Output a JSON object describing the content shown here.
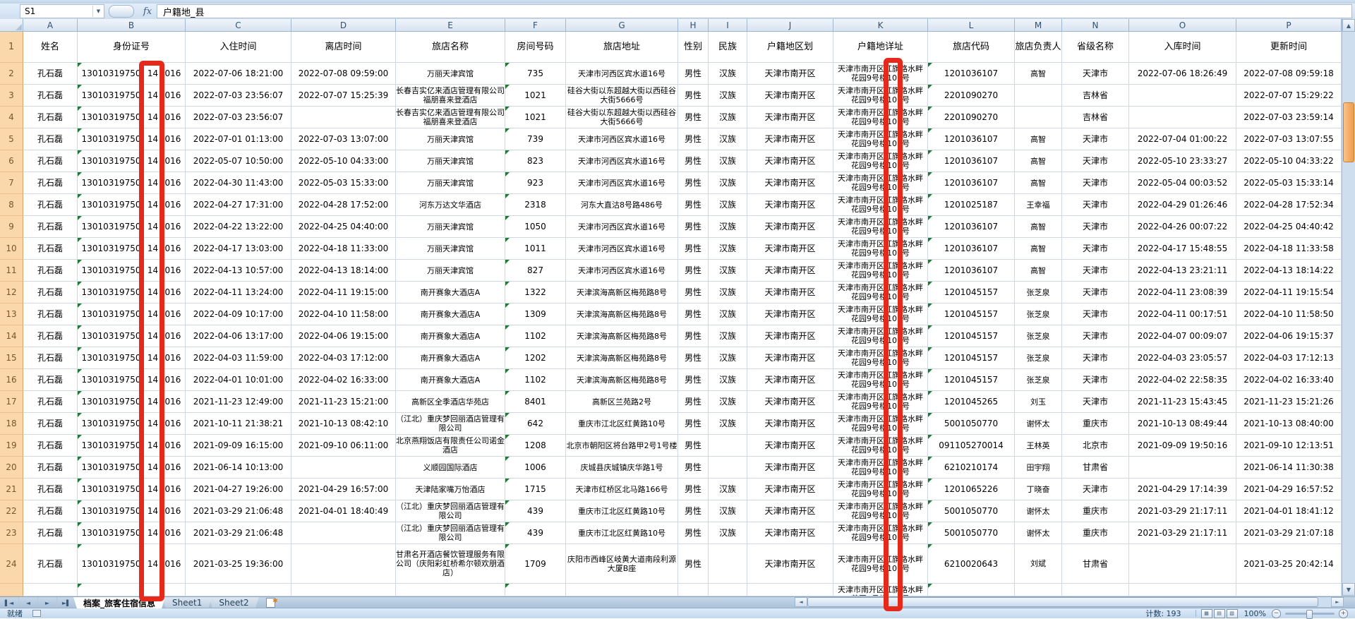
{
  "name_box": {
    "value": "S1"
  },
  "formula_bar": {
    "fx_label": "fx",
    "value": "户籍地_县"
  },
  "column_letters": [
    "A",
    "B",
    "C",
    "D",
    "E",
    "F",
    "G",
    "H",
    "I",
    "J",
    "K",
    "L",
    "M",
    "N",
    "O",
    "P"
  ],
  "table": {
    "headers": [
      "姓名",
      "身份证号",
      "入住时间",
      "离店时间",
      "旅店名称",
      "房间号码",
      "旅店地址",
      "性别",
      "民族",
      "户籍地区划",
      "户籍地详址",
      "旅店代码",
      "旅店负责人",
      "省级名称",
      "入库时间",
      "更新时间"
    ],
    "id_parts": {
      "prefix": "13010319750",
      "highlighted": "14",
      "suffix": "016"
    },
    "common": {
      "name": "孔石磊",
      "gender": "男性",
      "region": "天津市南开区",
      "detail_addr_line1": "天津市南开区红旗路水畔",
      "detail_addr_line2": "花园9号楼101号"
    },
    "rows": [
      {
        "n": 2,
        "in": "2022-07-06 18:21:00",
        "out": "2022-07-08 09:59:00",
        "hotel": "万丽天津宾馆",
        "room": "735",
        "addr": "天津市河西区宾水道16号",
        "eth": "汉族",
        "code": "1201036107",
        "mgr": "高智",
        "prov": "天津市",
        "stored": "2022-07-06 18:26:49",
        "updated": "2022-07-08 09:59:18"
      },
      {
        "n": 3,
        "in": "2022-07-03 23:56:07",
        "out": "2022-07-07 15:25:39",
        "hotel": "长春吉实亿来酒店管理有限公司福朋喜来登酒店",
        "room": "1021",
        "addr": "硅谷大街以东超越大街以西硅谷大街5666号",
        "eth": "汉族",
        "code": "2201090270",
        "mgr": "",
        "prov": "吉林省",
        "stored": "",
        "updated": "2022-07-07 15:29:22"
      },
      {
        "n": 4,
        "in": "2022-07-03 23:56:07",
        "out": "",
        "hotel": "长春吉实亿来酒店管理有限公司福朋喜来登酒店",
        "room": "1021",
        "addr": "硅谷大街以东超越大街以西硅谷大街5666号",
        "eth": "汉族",
        "code": "2201090270",
        "mgr": "",
        "prov": "吉林省",
        "stored": "",
        "updated": "2022-07-03 23:59:14"
      },
      {
        "n": 5,
        "in": "2022-07-01 01:13:00",
        "out": "2022-07-03 13:07:00",
        "hotel": "万丽天津宾馆",
        "room": "739",
        "addr": "天津市河西区宾水道16号",
        "eth": "汉族",
        "code": "1201036107",
        "mgr": "高智",
        "prov": "天津市",
        "stored": "2022-07-04 01:00:22",
        "updated": "2022-07-03 13:07:55"
      },
      {
        "n": 6,
        "in": "2022-05-07 10:50:00",
        "out": "2022-05-10 04:33:00",
        "hotel": "万丽天津宾馆",
        "room": "823",
        "addr": "天津市河西区宾水道16号",
        "eth": "汉族",
        "code": "1201036107",
        "mgr": "高智",
        "prov": "天津市",
        "stored": "2022-05-10 23:33:27",
        "updated": "2022-05-10 04:33:22"
      },
      {
        "n": 7,
        "in": "2022-04-30 11:43:00",
        "out": "2022-05-03 15:33:00",
        "hotel": "万丽天津宾馆",
        "room": "923",
        "addr": "天津市河西区宾水道16号",
        "eth": "汉族",
        "code": "1201036107",
        "mgr": "高智",
        "prov": "天津市",
        "stored": "2022-05-04 00:03:52",
        "updated": "2022-05-03 15:33:14"
      },
      {
        "n": 8,
        "in": "2022-04-27 17:31:00",
        "out": "2022-04-28 17:52:00",
        "hotel": "河东万达文华酒店",
        "room": "2318",
        "addr": "河东大直沽8号路486号",
        "eth": "汉族",
        "code": "1201025187",
        "mgr": "王幸福",
        "prov": "天津市",
        "stored": "2022-04-29 01:26:46",
        "updated": "2022-04-28 17:52:34"
      },
      {
        "n": 9,
        "in": "2022-04-22 13:22:00",
        "out": "2022-04-25 04:40:00",
        "hotel": "万丽天津宾馆",
        "room": "1050",
        "addr": "天津市河西区宾水道16号",
        "eth": "汉族",
        "code": "1201036107",
        "mgr": "高智",
        "prov": "天津市",
        "stored": "2022-04-26 00:07:22",
        "updated": "2022-04-25 04:40:42"
      },
      {
        "n": 10,
        "in": "2022-04-17 13:03:00",
        "out": "2022-04-18 11:33:00",
        "hotel": "万丽天津宾馆",
        "room": "1011",
        "addr": "天津市河西区宾水道16号",
        "eth": "汉族",
        "code": "1201036107",
        "mgr": "高智",
        "prov": "天津市",
        "stored": "2022-04-17 15:48:55",
        "updated": "2022-04-18 11:33:58"
      },
      {
        "n": 11,
        "in": "2022-04-13 10:57:00",
        "out": "2022-04-13 18:14:00",
        "hotel": "万丽天津宾馆",
        "room": "827",
        "addr": "天津市河西区宾水道16号",
        "eth": "汉族",
        "code": "1201036107",
        "mgr": "高智",
        "prov": "天津市",
        "stored": "2022-04-13 23:21:11",
        "updated": "2022-04-13 18:14:22"
      },
      {
        "n": 12,
        "in": "2022-04-11 13:24:00",
        "out": "2022-04-11 19:15:00",
        "hotel": "南开赛象大酒店A",
        "room": "1322",
        "addr": "天津滨海高新区梅苑路8号",
        "eth": "汉族",
        "code": "1201045157",
        "mgr": "张芝泉",
        "prov": "天津市",
        "stored": "2022-04-11 23:08:39",
        "updated": "2022-04-11 19:15:54"
      },
      {
        "n": 13,
        "in": "2022-04-09 10:17:00",
        "out": "2022-04-10 11:58:00",
        "hotel": "南开赛象大酒店A",
        "room": "1309",
        "addr": "天津滨海高新区梅苑路8号",
        "eth": "汉族",
        "code": "1201045157",
        "mgr": "张芝泉",
        "prov": "天津市",
        "stored": "2022-04-11 00:17:51",
        "updated": "2022-04-10 11:58:50"
      },
      {
        "n": 14,
        "in": "2022-04-06 13:17:00",
        "out": "2022-04-06 19:15:00",
        "hotel": "南开赛象大酒店A",
        "room": "1102",
        "addr": "天津滨海高新区梅苑路8号",
        "eth": "汉族",
        "code": "1201045157",
        "mgr": "张芝泉",
        "prov": "天津市",
        "stored": "2022-04-07 00:09:07",
        "updated": "2022-04-06 19:15:37"
      },
      {
        "n": 15,
        "in": "2022-04-03 11:59:00",
        "out": "2022-04-03 17:12:00",
        "hotel": "南开赛象大酒店A",
        "room": "1202",
        "addr": "天津滨海高新区梅苑路8号",
        "eth": "汉族",
        "code": "1201045157",
        "mgr": "张芝泉",
        "prov": "天津市",
        "stored": "2022-04-03 23:05:57",
        "updated": "2022-04-03 17:12:13"
      },
      {
        "n": 16,
        "in": "2022-04-01 10:01:00",
        "out": "2022-04-02 16:33:00",
        "hotel": "南开赛象大酒店A",
        "room": "1102",
        "addr": "天津滨海高新区梅苑路8号",
        "eth": "汉族",
        "code": "1201045157",
        "mgr": "张芝泉",
        "prov": "天津市",
        "stored": "2022-04-02 22:58:35",
        "updated": "2022-04-02 16:33:40"
      },
      {
        "n": 17,
        "in": "2021-11-23 12:49:00",
        "out": "2021-11-23 15:21:00",
        "hotel": "高新区全季酒店华苑店",
        "room": "8401",
        "addr": "高新区兰苑路2号",
        "eth": "汉族",
        "code": "1201045265",
        "mgr": "刘玉",
        "prov": "天津市",
        "stored": "2021-11-23 15:43:45",
        "updated": "2021-11-23 15:21:26"
      },
      {
        "n": 18,
        "in": "2021-10-11 21:38:21",
        "out": "2021-10-13 08:42:10",
        "hotel": "（江北）重庆梦回丽酒店管理有限公司",
        "room": "642",
        "addr": "重庆市江北区红黄路10号",
        "eth": "汉族",
        "code": "5001050770",
        "mgr": "谢怀太",
        "prov": "重庆市",
        "stored": "2021-10-13 08:49:44",
        "updated": "2021-10-13 08:40:00"
      },
      {
        "n": 19,
        "in": "2021-09-09 16:15:00",
        "out": "2021-09-10 06:11:00",
        "hotel": "北京燕翔饭店有限责任公司诺金酒店",
        "room": "1208",
        "addr": "北京市朝阳区将台路甲2号1号楼",
        "eth": "",
        "code": "091105270014",
        "mgr": "王林英",
        "prov": "北京市",
        "stored": "2021-09-09 19:50:16",
        "updated": "2021-09-10 12:13:51"
      },
      {
        "n": 20,
        "in": "2021-06-14 10:13:00",
        "out": "",
        "hotel": "义顺园国际酒店",
        "room": "1006",
        "addr": "庆城县庆城镇庆华路1号",
        "eth": "",
        "code": "6210210174",
        "mgr": "田宇翔",
        "prov": "甘肃省",
        "stored": "",
        "updated": "2021-06-14 11:30:38"
      },
      {
        "n": 21,
        "in": "2021-04-27 19:26:00",
        "out": "2021-04-29 16:57:00",
        "hotel": "天津陆家嘴万怡酒店",
        "room": "1715",
        "addr": "天津市红桥区北马路166号",
        "eth": "汉族",
        "code": "1201065226",
        "mgr": "丁晓奋",
        "prov": "天津市",
        "stored": "2021-04-29 17:14:39",
        "updated": "2021-04-29 16:57:52"
      },
      {
        "n": 22,
        "in": "2021-03-29 21:06:48",
        "out": "2021-04-01 18:40:49",
        "hotel": "（江北）重庆梦回丽酒店管理有限公司",
        "room": "439",
        "addr": "重庆市江北区红黄路10号",
        "eth": "汉族",
        "code": "5001050770",
        "mgr": "谢怀太",
        "prov": "重庆市",
        "stored": "2021-03-29 21:17:11",
        "updated": "2021-04-01 18:41:12"
      },
      {
        "n": 23,
        "in": "2021-03-29 21:06:48",
        "out": "",
        "hotel": "（江北）重庆梦回丽酒店管理有限公司",
        "room": "439",
        "addr": "重庆市江北区红黄路10号",
        "eth": "汉族",
        "code": "5001050770",
        "mgr": "谢怀太",
        "prov": "重庆市",
        "stored": "2021-03-29 21:17:11",
        "updated": "2021-03-29 21:07:18"
      },
      {
        "n": 24,
        "in": "2021-03-25 19:36:00",
        "out": "",
        "hotel": "甘肃名开酒店餐饮管理服务有限公司（庆阳彩虹桥希尔顿欢朋酒店）",
        "room": "1709",
        "addr": "庆阳市西峰区岐黄大道南段利源大厦B座",
        "eth": "",
        "code": "6210020643",
        "mgr": "刘斌",
        "prov": "甘肃省",
        "stored": "",
        "updated": "2021-03-25 20:42:14"
      },
      {
        "n": 25,
        "partial": true,
        "in": "",
        "out": "",
        "hotel": "",
        "room": "",
        "addr": "",
        "eth": "",
        "code": "",
        "mgr": "",
        "prov": "",
        "stored": "",
        "updated": ""
      }
    ]
  },
  "annotations": {
    "red_box_color": "#e52a1c",
    "red_boxes": [
      "highlight-id-middle-digits-column-B",
      "highlight-detail-address-column-K"
    ]
  },
  "sheet_tabs": {
    "active": "档案_旅客住宿信息",
    "others": [
      "Sheet1",
      "Sheet2"
    ]
  },
  "status_bar": {
    "ready": "就绪",
    "count": "计数: 193",
    "zoom": "100%"
  }
}
